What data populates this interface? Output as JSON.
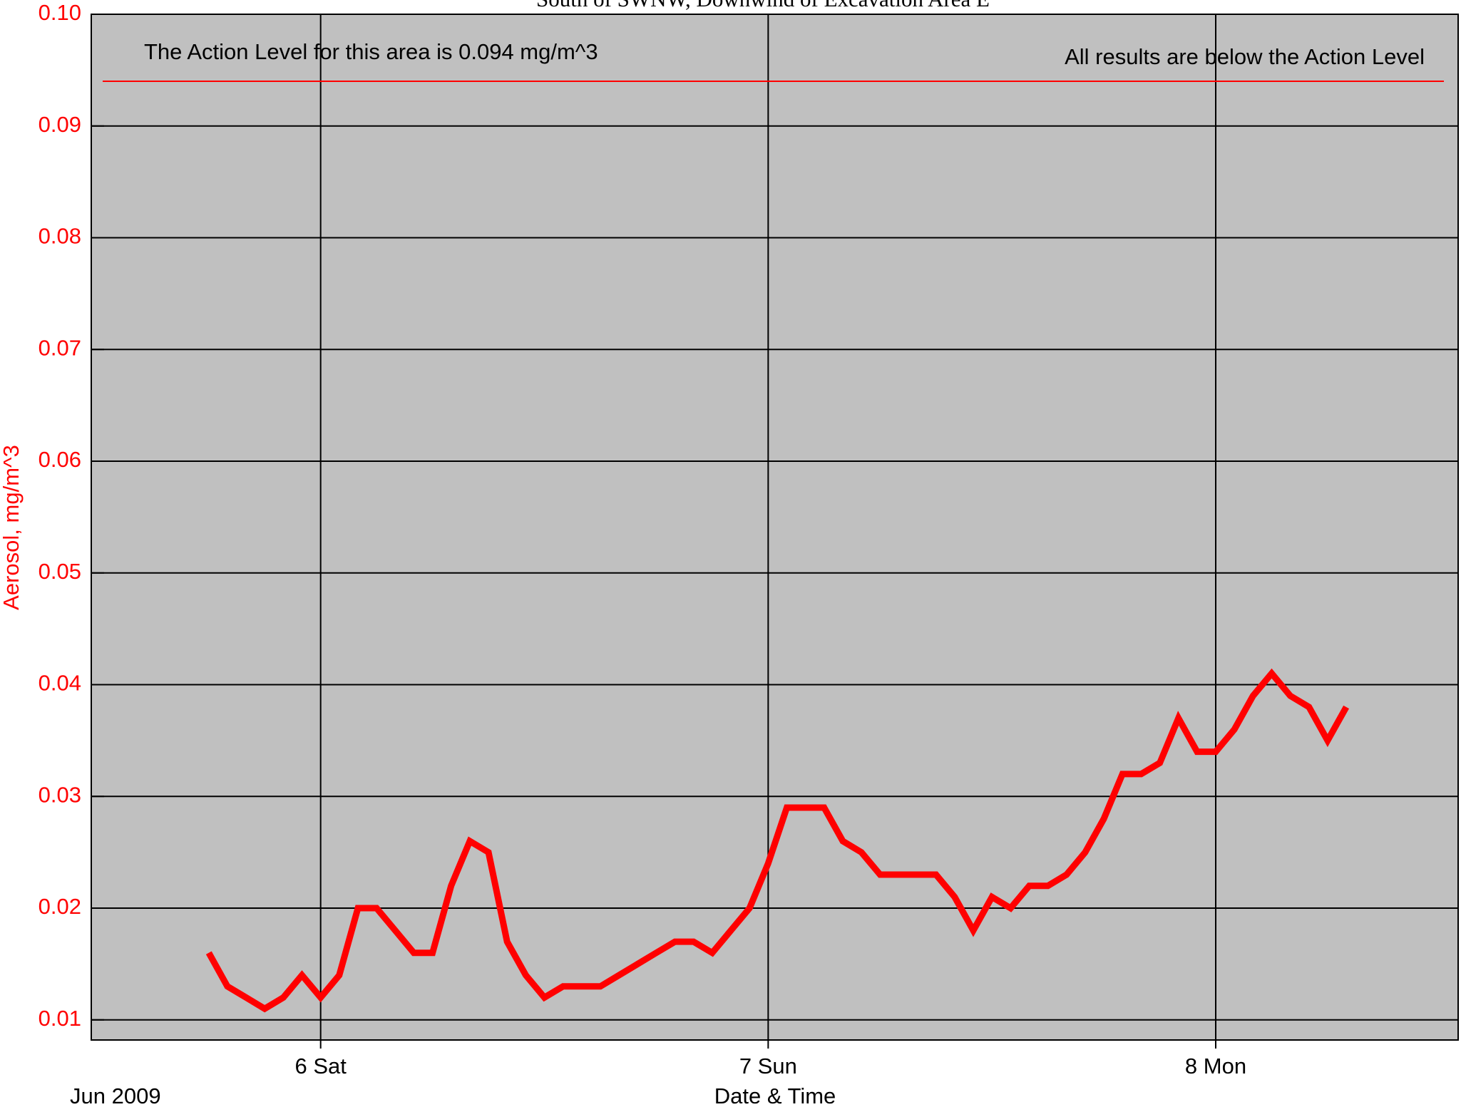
{
  "chart_data": {
    "type": "line",
    "title": "South of SWNW, Downwind of Excavation Area E",
    "y_label": "Aerosol, mg/m^3",
    "x_label": "Date & Time",
    "x_sublabel": "Jun 2009",
    "annotations": [
      "The Action Level for this area is 0.094 mg/m^3",
      "All results are below the Action Level"
    ],
    "action_level": 0.094,
    "action_level_color": "#ff0000",
    "color": "#ff0000",
    "background": "#c0c0c0",
    "grid": true,
    "x": [
      -6,
      -5,
      -4,
      -3,
      -2,
      -1,
      0,
      1,
      2,
      3,
      4,
      5,
      6,
      7,
      8,
      9,
      10,
      11,
      12,
      13,
      14,
      15,
      16,
      17,
      18,
      19,
      20,
      21,
      22,
      23,
      24,
      25,
      26,
      27,
      28,
      29,
      30,
      31,
      32,
      33,
      34,
      35,
      36,
      37,
      38,
      39,
      40,
      41,
      42,
      43,
      44,
      45,
      46,
      47,
      48,
      49,
      50,
      51,
      52,
      53,
      54,
      55
    ],
    "values": [
      0.016,
      0.013,
      0.012,
      0.011,
      0.012,
      0.014,
      0.012,
      0.014,
      0.02,
      0.02,
      0.018,
      0.016,
      0.016,
      0.022,
      0.026,
      0.025,
      0.017,
      0.014,
      0.012,
      0.013,
      0.013,
      0.013,
      0.014,
      0.015,
      0.016,
      0.017,
      0.017,
      0.016,
      0.018,
      0.02,
      0.024,
      0.029,
      0.029,
      0.029,
      0.026,
      0.025,
      0.023,
      0.023,
      0.023,
      0.023,
      0.021,
      0.018,
      0.021,
      0.02,
      0.022,
      0.022,
      0.023,
      0.025,
      0.028,
      0.032,
      0.032,
      0.033,
      0.037,
      0.034,
      0.034,
      0.036,
      0.039,
      0.041,
      0.039,
      0.038,
      0.035,
      0.038
    ],
    "xlim": [
      -12.3,
      61
    ],
    "xticks": [
      {
        "value": 0,
        "label": "6 Sat"
      },
      {
        "value": 24,
        "label": "7 Sun"
      },
      {
        "value": 48,
        "label": "8 Mon"
      }
    ],
    "ylim": [
      0.0082,
      0.1
    ],
    "yticks": [
      0.01,
      0.02,
      0.03,
      0.04,
      0.05,
      0.06,
      0.07,
      0.08,
      0.09,
      {
        "value": 0.1,
        "label": "0.10"
      }
    ]
  }
}
